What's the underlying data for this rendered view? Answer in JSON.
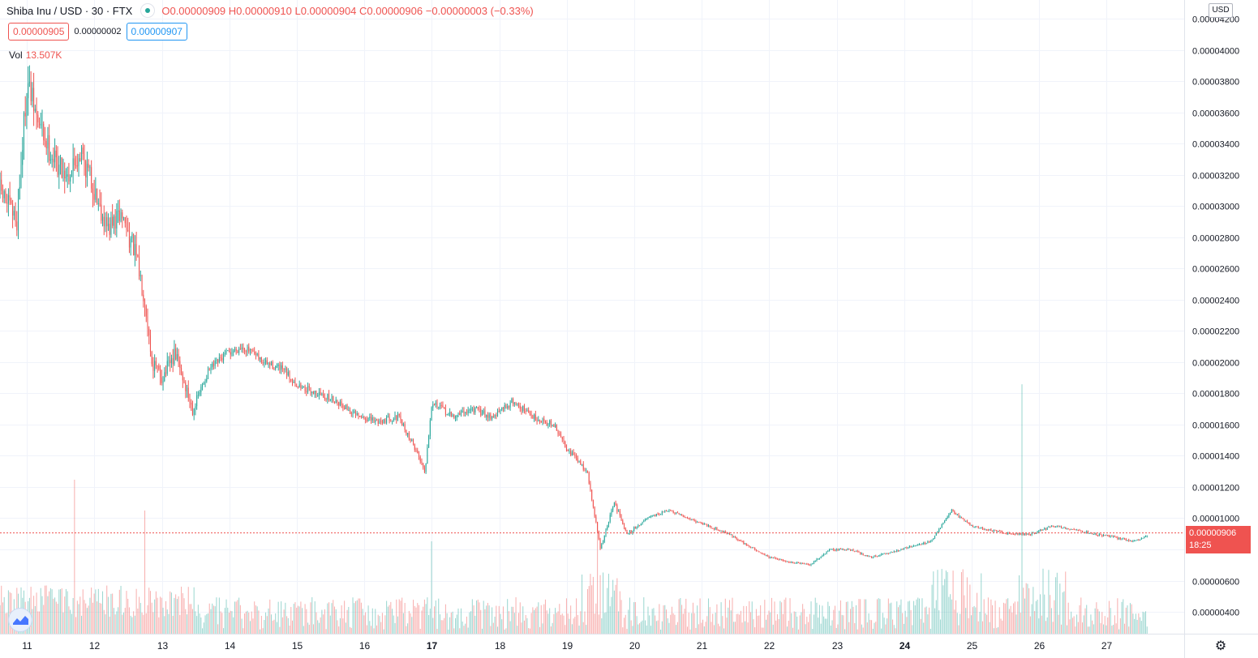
{
  "header": {
    "symbol": "Shiba Inu / USD · 30 · FTX",
    "ohlc": {
      "o_label": "O",
      "o": "0.00000909",
      "h_label": "H",
      "h": "0.00000910",
      "l_label": "L",
      "l": "0.00000904",
      "c_label": "C",
      "c": "0.00000906",
      "change": "−0.00000003 (−0.33%)"
    },
    "sell_price": "0.00000905",
    "spread": "0.00000002",
    "buy_price": "0.00000907",
    "volume_label": "Vol",
    "volume_value": "13.507K",
    "currency": "USD"
  },
  "price_badge": {
    "price": "0.00000906",
    "countdown": "18:25"
  },
  "colors": {
    "up": "#26a69a",
    "down": "#ef5350",
    "grid": "#f0f3fa",
    "axis_text": "#131722"
  },
  "icons": {
    "status": "green-dot-icon",
    "logo": "tradingview-logo-icon",
    "settings": "gear-icon"
  },
  "chart_data": {
    "type": "candlestick",
    "title": "Shiba Inu / USD · 30 · FTX",
    "xlabel": "",
    "ylabel": "",
    "y_ticks": [
      "0.00004200",
      "0.00004000",
      "0.00003800",
      "0.00003600",
      "0.00003400",
      "0.00003200",
      "0.00003000",
      "0.00002800",
      "0.00002600",
      "0.00002400",
      "0.00002200",
      "0.00002000",
      "0.00001800",
      "0.00001600",
      "0.00001400",
      "0.00001200",
      "0.00001000",
      "0.00000800",
      "0.00000600",
      "0.00000400"
    ],
    "y_tick_values": [
      4.2e-05,
      4e-05,
      3.8e-05,
      3.6e-05,
      3.4e-05,
      3.2e-05,
      3e-05,
      2.8e-05,
      2.6e-05,
      2.4e-05,
      2.2e-05,
      2e-05,
      1.8e-05,
      1.6e-05,
      1.4e-05,
      1.2e-05,
      1e-05,
      8e-06,
      6e-06,
      4e-06
    ],
    "ylim": [
      2.6e-06,
      4.32e-05
    ],
    "x_ticks": [
      "11",
      "12",
      "13",
      "14",
      "15",
      "16",
      "17",
      "18",
      "19",
      "20",
      "21",
      "22",
      "23",
      "24",
      "25",
      "26",
      "27"
    ],
    "x_tick_days": [
      11,
      12,
      13,
      14,
      15,
      16,
      17,
      18,
      19,
      20,
      21,
      22,
      23,
      24,
      25,
      26,
      27
    ],
    "x_tick_bold": [
      "17",
      "24"
    ],
    "xlim_days": [
      10.6,
      28.15
    ],
    "grid": true,
    "last_price": 9.06e-06,
    "anchors_price": [
      [
        10.6,
        3.1e-05
      ],
      [
        10.85,
        2.9e-05
      ],
      [
        11.0,
        3.8e-05
      ],
      [
        11.15,
        3.55e-05
      ],
      [
        11.4,
        3.3e-05
      ],
      [
        11.6,
        3.2e-05
      ],
      [
        11.8,
        3.35e-05
      ],
      [
        12.0,
        3.1e-05
      ],
      [
        12.2,
        2.85e-05
      ],
      [
        12.4,
        2.95e-05
      ],
      [
        12.6,
        2.7e-05
      ],
      [
        12.75,
        2.4e-05
      ],
      [
        12.85,
        2e-05
      ],
      [
        13.0,
        1.9e-05
      ],
      [
        13.2,
        2.05e-05
      ],
      [
        13.45,
        1.7e-05
      ],
      [
        13.7,
        1.95e-05
      ],
      [
        13.95,
        2.05e-05
      ],
      [
        14.2,
        2.1e-05
      ],
      [
        14.5,
        2e-05
      ],
      [
        14.8,
        1.95e-05
      ],
      [
        15.0,
        1.85e-05
      ],
      [
        15.3,
        1.8e-05
      ],
      [
        15.6,
        1.75e-05
      ],
      [
        15.9,
        1.65e-05
      ],
      [
        16.2,
        1.62e-05
      ],
      [
        16.5,
        1.65e-05
      ],
      [
        16.75,
        1.45e-05
      ],
      [
        16.9,
        1.3e-05
      ],
      [
        17.0,
        1.75e-05
      ],
      [
        17.3,
        1.65e-05
      ],
      [
        17.6,
        1.7e-05
      ],
      [
        17.9,
        1.65e-05
      ],
      [
        18.2,
        1.75e-05
      ],
      [
        18.5,
        1.65e-05
      ],
      [
        18.8,
        1.6e-05
      ],
      [
        19.0,
        1.45e-05
      ],
      [
        19.3,
        1.3e-05
      ],
      [
        19.5,
        8e-06
      ],
      [
        19.7,
        1.1e-05
      ],
      [
        19.9,
        9e-06
      ],
      [
        20.2,
        1e-05
      ],
      [
        20.5,
        1.05e-05
      ],
      [
        20.8,
        1e-05
      ],
      [
        21.1,
        9.5e-06
      ],
      [
        21.4,
        9e-06
      ],
      [
        21.7,
        8.2e-06
      ],
      [
        22.0,
        7.5e-06
      ],
      [
        22.3,
        7.2e-06
      ],
      [
        22.6,
        7e-06
      ],
      [
        22.9,
        8e-06
      ],
      [
        23.2,
        8e-06
      ],
      [
        23.5,
        7.5e-06
      ],
      [
        23.8,
        7.8e-06
      ],
      [
        24.1,
        8.2e-06
      ],
      [
        24.4,
        8.5e-06
      ],
      [
        24.7,
        1.05e-05
      ],
      [
        25.0,
        9.5e-06
      ],
      [
        25.3,
        9.2e-06
      ],
      [
        25.6,
        9e-06
      ],
      [
        25.9,
        9e-06
      ],
      [
        26.2,
        9.5e-06
      ],
      [
        26.5,
        9.3e-06
      ],
      [
        26.8,
        9e-06
      ],
      [
        27.1,
        8.8e-06
      ],
      [
        27.4,
        8.5e-06
      ],
      [
        27.7,
        9e-06
      ],
      [
        28.15,
        9.1e-06
      ]
    ],
    "volume_spikes": [
      [
        11.7,
        1.0
      ],
      [
        12.75,
        0.8
      ],
      [
        17.0,
        0.6
      ],
      [
        19.45,
        0.4
      ],
      [
        25.75,
        0.9
      ]
    ]
  }
}
